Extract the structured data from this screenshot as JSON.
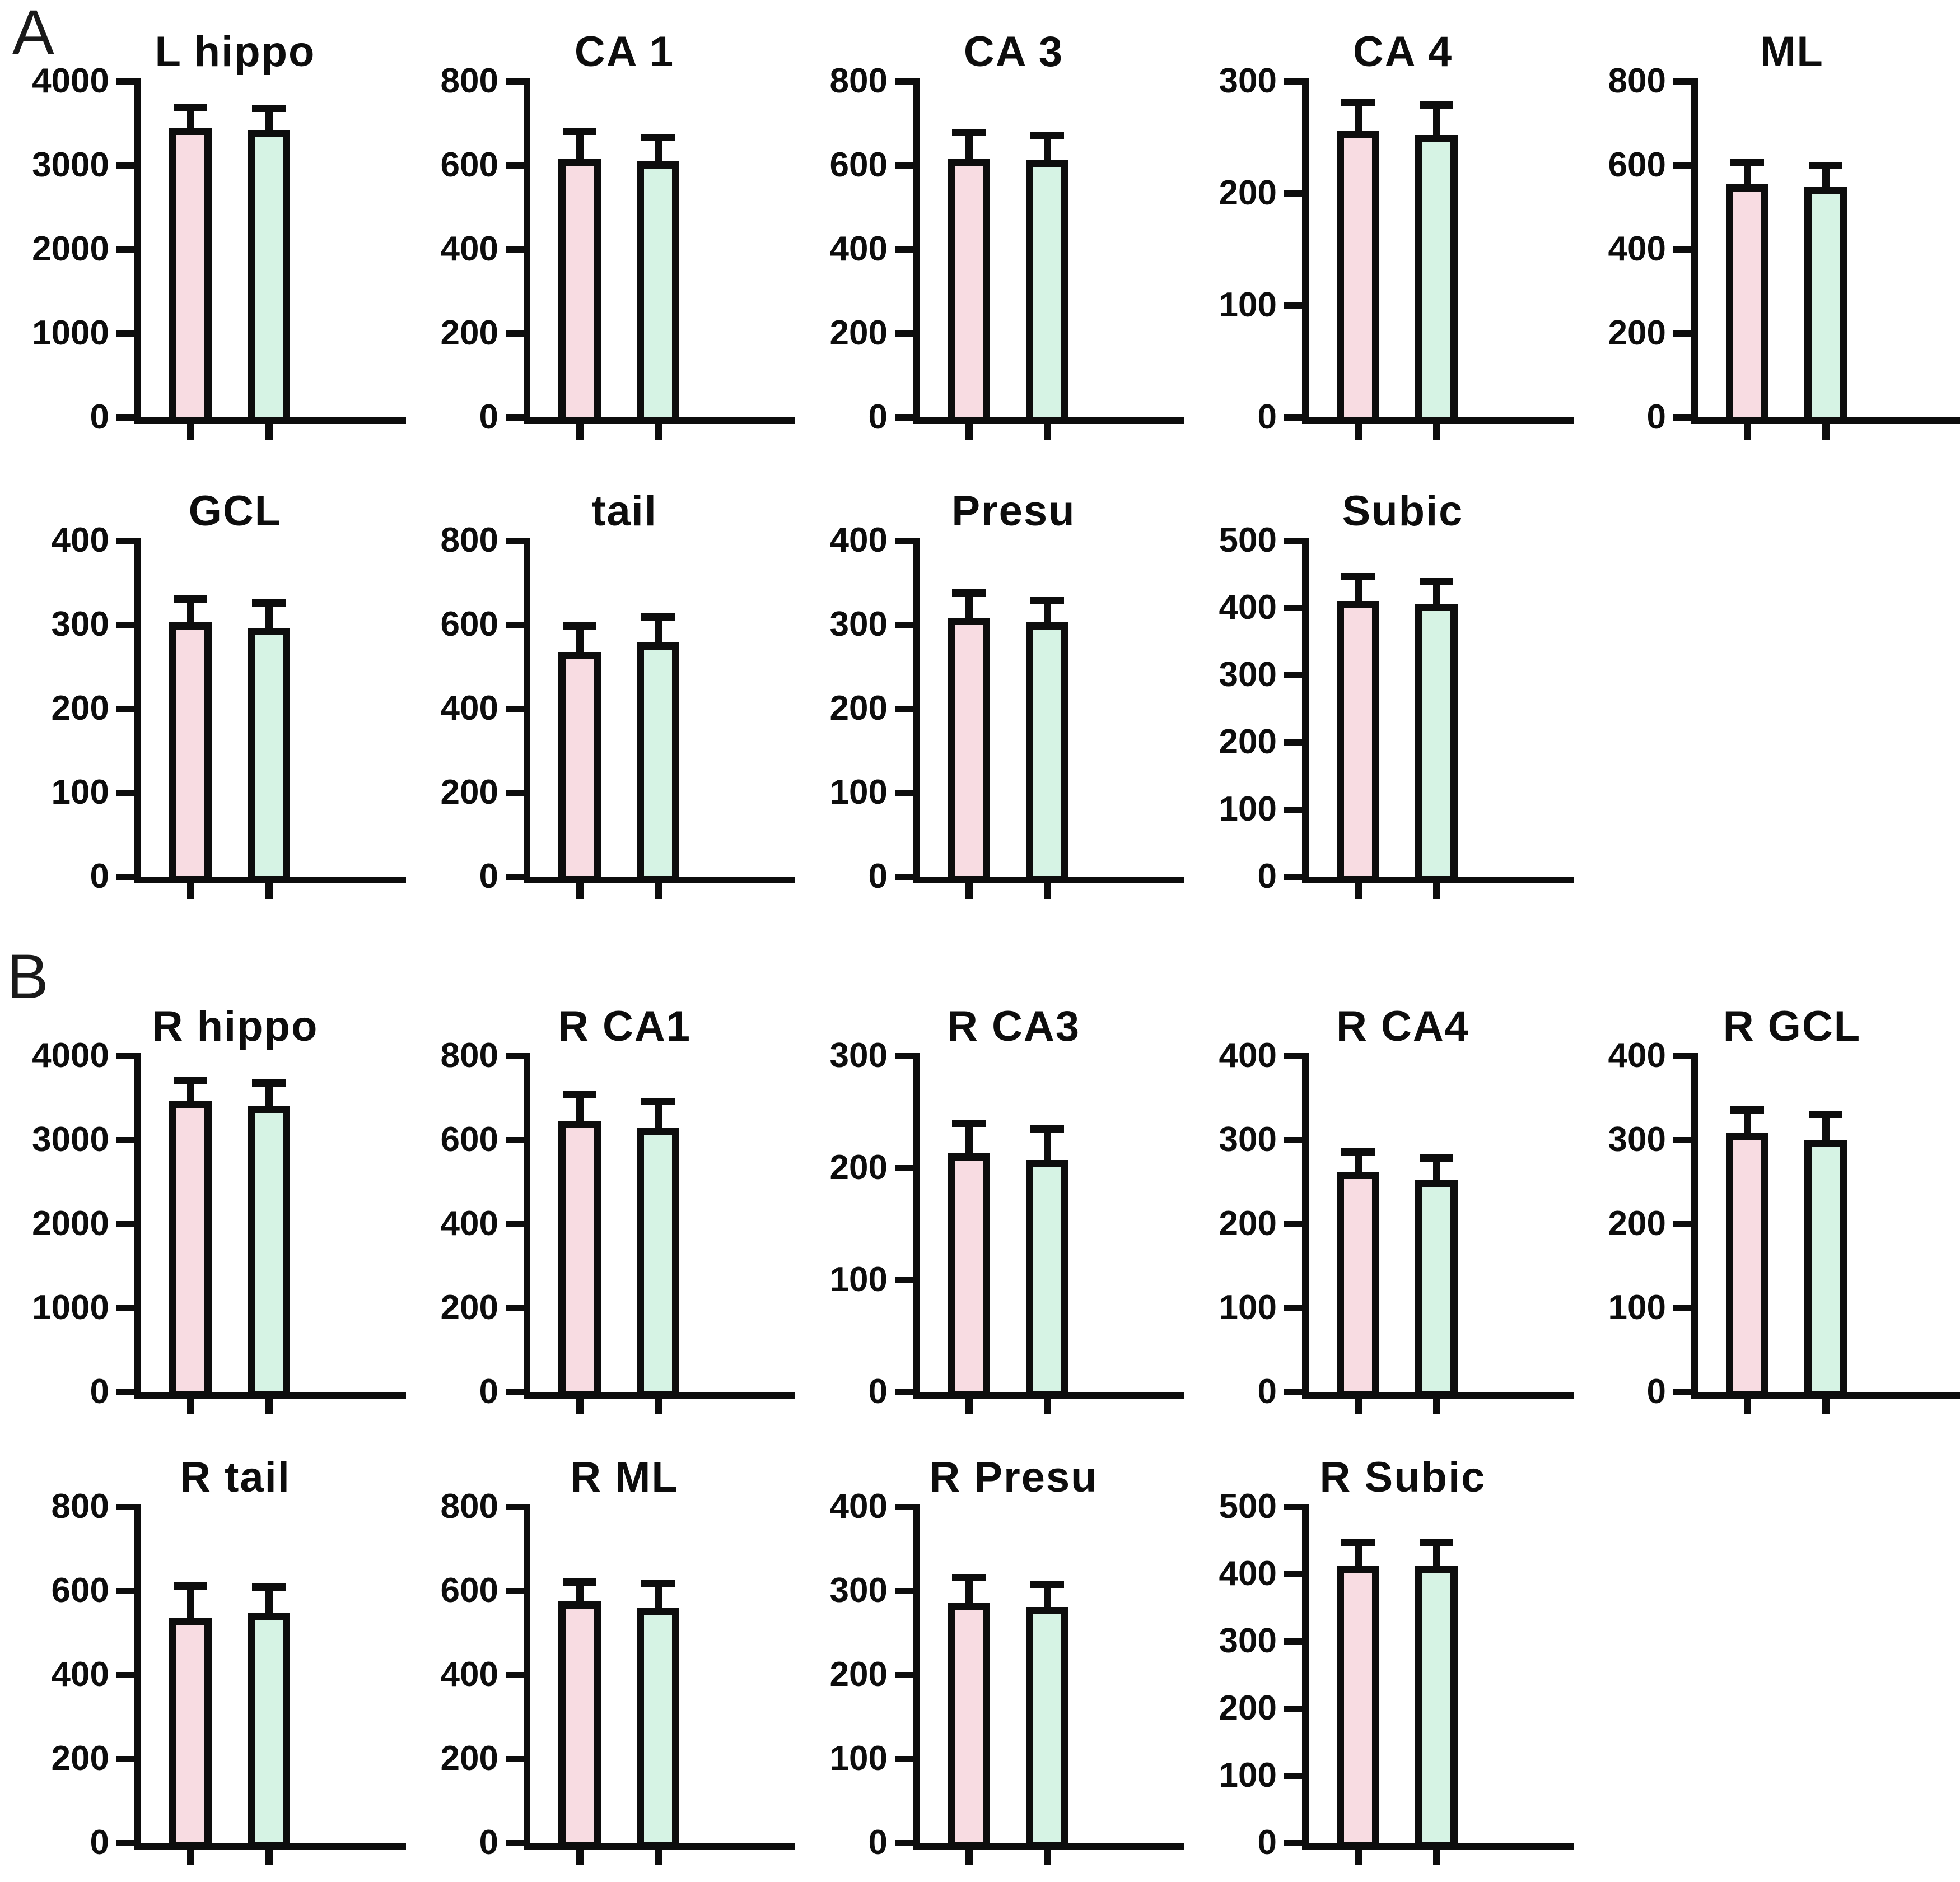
{
  "figure": {
    "panel_a_label": "A",
    "panel_b_label": "B",
    "colors": {
      "bar1_fill": "#f8dce2",
      "bar2_fill": "#d6f3e4",
      "outline": "#0d0d0d",
      "background": "#ffffff"
    }
  },
  "chart_data": [
    {
      "type": "bar",
      "panel": "A",
      "row": 0,
      "col": 0,
      "title": "L hippo",
      "ylim": [
        0,
        4000
      ],
      "yticks": [
        0,
        1000,
        2000,
        3000,
        4000
      ],
      "grid": false,
      "legend": "none",
      "series": [
        {
          "name": "left-pink-bar",
          "value": 3450,
          "error": 280
        },
        {
          "name": "right-green-bar",
          "value": 3420,
          "error": 300
        }
      ]
    },
    {
      "type": "bar",
      "panel": "A",
      "row": 0,
      "col": 1,
      "title": "CA 1",
      "ylim": [
        0,
        800
      ],
      "yticks": [
        0,
        200,
        400,
        600,
        800
      ],
      "grid": false,
      "legend": "none",
      "series": [
        {
          "name": "left-pink-bar",
          "value": 615,
          "error": 75
        },
        {
          "name": "right-green-bar",
          "value": 610,
          "error": 65
        }
      ]
    },
    {
      "type": "bar",
      "panel": "A",
      "row": 0,
      "col": 2,
      "title": "CA 3",
      "ylim": [
        0,
        800
      ],
      "yticks": [
        0,
        200,
        400,
        600,
        800
      ],
      "grid": false,
      "legend": "none",
      "series": [
        {
          "name": "left-pink-bar",
          "value": 615,
          "error": 72
        },
        {
          "name": "right-green-bar",
          "value": 612,
          "error": 68
        }
      ]
    },
    {
      "type": "bar",
      "panel": "A",
      "row": 0,
      "col": 3,
      "title": "CA 4",
      "ylim": [
        0,
        300
      ],
      "yticks": [
        0,
        100,
        200,
        300
      ],
      "grid": false,
      "legend": "none",
      "series": [
        {
          "name": "left-pink-bar",
          "value": 256,
          "error": 28
        },
        {
          "name": "right-green-bar",
          "value": 252,
          "error": 30
        }
      ]
    },
    {
      "type": "bar",
      "panel": "A",
      "row": 0,
      "col": 4,
      "title": "ML",
      "ylim": [
        0,
        800
      ],
      "yticks": [
        0,
        200,
        400,
        600,
        800
      ],
      "grid": false,
      "legend": "none",
      "series": [
        {
          "name": "left-pink-bar",
          "value": 555,
          "error": 60
        },
        {
          "name": "right-green-bar",
          "value": 550,
          "error": 58
        }
      ]
    },
    {
      "type": "bar",
      "panel": "A",
      "row": 1,
      "col": 0,
      "title": "GCL",
      "ylim": [
        0,
        400
      ],
      "yticks": [
        0,
        100,
        200,
        300,
        400
      ],
      "grid": false,
      "legend": "none",
      "series": [
        {
          "name": "left-pink-bar",
          "value": 303,
          "error": 32
        },
        {
          "name": "right-green-bar",
          "value": 296,
          "error": 34
        }
      ]
    },
    {
      "type": "bar",
      "panel": "A",
      "row": 1,
      "col": 1,
      "title": "tail",
      "ylim": [
        0,
        800
      ],
      "yticks": [
        0,
        200,
        400,
        600,
        800
      ],
      "grid": false,
      "legend": "none",
      "series": [
        {
          "name": "left-pink-bar",
          "value": 535,
          "error": 70
        },
        {
          "name": "right-green-bar",
          "value": 557,
          "error": 70
        }
      ]
    },
    {
      "type": "bar",
      "panel": "A",
      "row": 1,
      "col": 2,
      "title": "Presu",
      "ylim": [
        0,
        400
      ],
      "yticks": [
        0,
        100,
        200,
        300,
        400
      ],
      "grid": false,
      "legend": "none",
      "series": [
        {
          "name": "left-pink-bar",
          "value": 308,
          "error": 34
        },
        {
          "name": "right-green-bar",
          "value": 303,
          "error": 30
        }
      ]
    },
    {
      "type": "bar",
      "panel": "A",
      "row": 1,
      "col": 3,
      "title": "Subic",
      "ylim": [
        0,
        500
      ],
      "yticks": [
        0,
        100,
        200,
        300,
        400,
        500
      ],
      "grid": false,
      "legend": "none",
      "series": [
        {
          "name": "left-pink-bar",
          "value": 410,
          "error": 42
        },
        {
          "name": "right-green-bar",
          "value": 406,
          "error": 38
        }
      ]
    },
    {
      "type": "bar",
      "panel": "B",
      "row": 0,
      "col": 0,
      "title": "R hippo",
      "ylim": [
        0,
        4000
      ],
      "yticks": [
        0,
        1000,
        2000,
        3000,
        4000
      ],
      "grid": false,
      "legend": "none",
      "series": [
        {
          "name": "left-pink-bar",
          "value": 3460,
          "error": 290
        },
        {
          "name": "right-green-bar",
          "value": 3410,
          "error": 310
        }
      ]
    },
    {
      "type": "bar",
      "panel": "B",
      "row": 0,
      "col": 1,
      "title": "R CA1",
      "ylim": [
        0,
        800
      ],
      "yticks": [
        0,
        200,
        400,
        600,
        800
      ],
      "grid": false,
      "legend": "none",
      "series": [
        {
          "name": "left-pink-bar",
          "value": 645,
          "error": 72
        },
        {
          "name": "right-green-bar",
          "value": 630,
          "error": 70
        }
      ]
    },
    {
      "type": "bar",
      "panel": "B",
      "row": 0,
      "col": 2,
      "title": "R CA3",
      "ylim": [
        0,
        300
      ],
      "yticks": [
        0,
        100,
        200,
        300
      ],
      "grid": false,
      "legend": "none",
      "series": [
        {
          "name": "left-pink-bar",
          "value": 213,
          "error": 30
        },
        {
          "name": "right-green-bar",
          "value": 207,
          "error": 31
        }
      ]
    },
    {
      "type": "bar",
      "panel": "B",
      "row": 0,
      "col": 3,
      "title": "R CA4",
      "ylim": [
        0,
        400
      ],
      "yticks": [
        0,
        100,
        200,
        300,
        400
      ],
      "grid": false,
      "legend": "none",
      "series": [
        {
          "name": "left-pink-bar",
          "value": 262,
          "error": 28
        },
        {
          "name": "right-green-bar",
          "value": 253,
          "error": 30
        }
      ]
    },
    {
      "type": "bar",
      "panel": "B",
      "row": 0,
      "col": 4,
      "title": "R GCL",
      "ylim": [
        0,
        400
      ],
      "yticks": [
        0,
        100,
        200,
        300,
        400
      ],
      "grid": false,
      "legend": "none",
      "series": [
        {
          "name": "left-pink-bar",
          "value": 308,
          "error": 32
        },
        {
          "name": "right-green-bar",
          "value": 300,
          "error": 35
        }
      ]
    },
    {
      "type": "bar",
      "panel": "B",
      "row": 1,
      "col": 0,
      "title": "R tail",
      "ylim": [
        0,
        800
      ],
      "yticks": [
        0,
        200,
        400,
        600,
        800
      ],
      "grid": false,
      "legend": "none",
      "series": [
        {
          "name": "left-pink-bar",
          "value": 535,
          "error": 85
        },
        {
          "name": "right-green-bar",
          "value": 548,
          "error": 70
        }
      ]
    },
    {
      "type": "bar",
      "panel": "B",
      "row": 1,
      "col": 1,
      "title": "R ML",
      "ylim": [
        0,
        800
      ],
      "yticks": [
        0,
        200,
        400,
        600,
        800
      ],
      "grid": false,
      "legend": "none",
      "series": [
        {
          "name": "left-pink-bar",
          "value": 575,
          "error": 55
        },
        {
          "name": "right-green-bar",
          "value": 560,
          "error": 65
        }
      ]
    },
    {
      "type": "bar",
      "panel": "B",
      "row": 1,
      "col": 2,
      "title": "R Presu",
      "ylim": [
        0,
        400
      ],
      "yticks": [
        0,
        100,
        200,
        300,
        400
      ],
      "grid": false,
      "legend": "none",
      "series": [
        {
          "name": "left-pink-bar",
          "value": 286,
          "error": 34
        },
        {
          "name": "right-green-bar",
          "value": 281,
          "error": 31
        }
      ]
    },
    {
      "type": "bar",
      "panel": "B",
      "row": 1,
      "col": 3,
      "title": "R Subic",
      "ylim": [
        0,
        500
      ],
      "yticks": [
        0,
        100,
        200,
        300,
        400,
        500
      ],
      "grid": false,
      "legend": "none",
      "series": [
        {
          "name": "left-pink-bar",
          "value": 412,
          "error": 40
        },
        {
          "name": "right-green-bar",
          "value": 412,
          "error": 40
        }
      ]
    }
  ]
}
